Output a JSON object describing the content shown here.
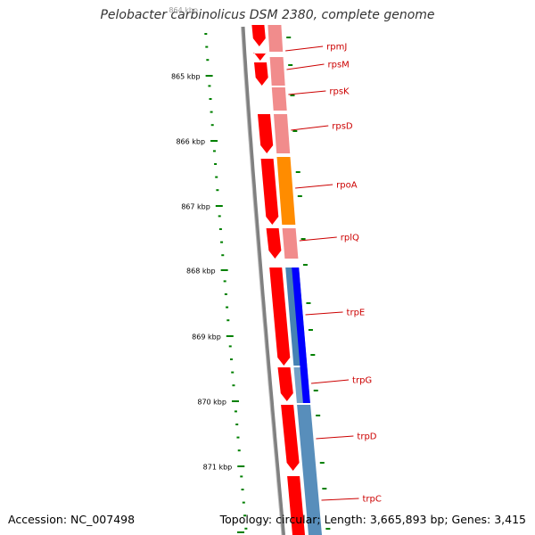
{
  "title": "Pelobacter carbinolicus DSM 2380, complete genome",
  "footer": {
    "accession": "Accession: NC_007498",
    "summary": "Topology: circular; Length: 3,665,893 bp; Genes: 3,415"
  },
  "colors": {
    "backbone": "#808080",
    "cds": "#ff0000",
    "rrna_like": "#f08080",
    "rpoA": "#ff8c00",
    "trpE": "#0000ff",
    "trp_operon": "#4682b4",
    "tick": "#008000",
    "label": "#cc0000"
  },
  "ruler": {
    "top_label": "864 kbp",
    "labels": [
      "865 kbp",
      "866 kbp",
      "867 kbp",
      "868 kbp",
      "869 kbp",
      "870 kbp",
      "871 kbp"
    ]
  },
  "genes": [
    {
      "name": "rpmJ"
    },
    {
      "name": "rpsM"
    },
    {
      "name": "rpsK"
    },
    {
      "name": "rpsD"
    },
    {
      "name": "rpoA"
    },
    {
      "name": "rplQ"
    },
    {
      "name": "trpE"
    },
    {
      "name": "trpG"
    },
    {
      "name": "trpD"
    },
    {
      "name": "trpC"
    }
  ]
}
